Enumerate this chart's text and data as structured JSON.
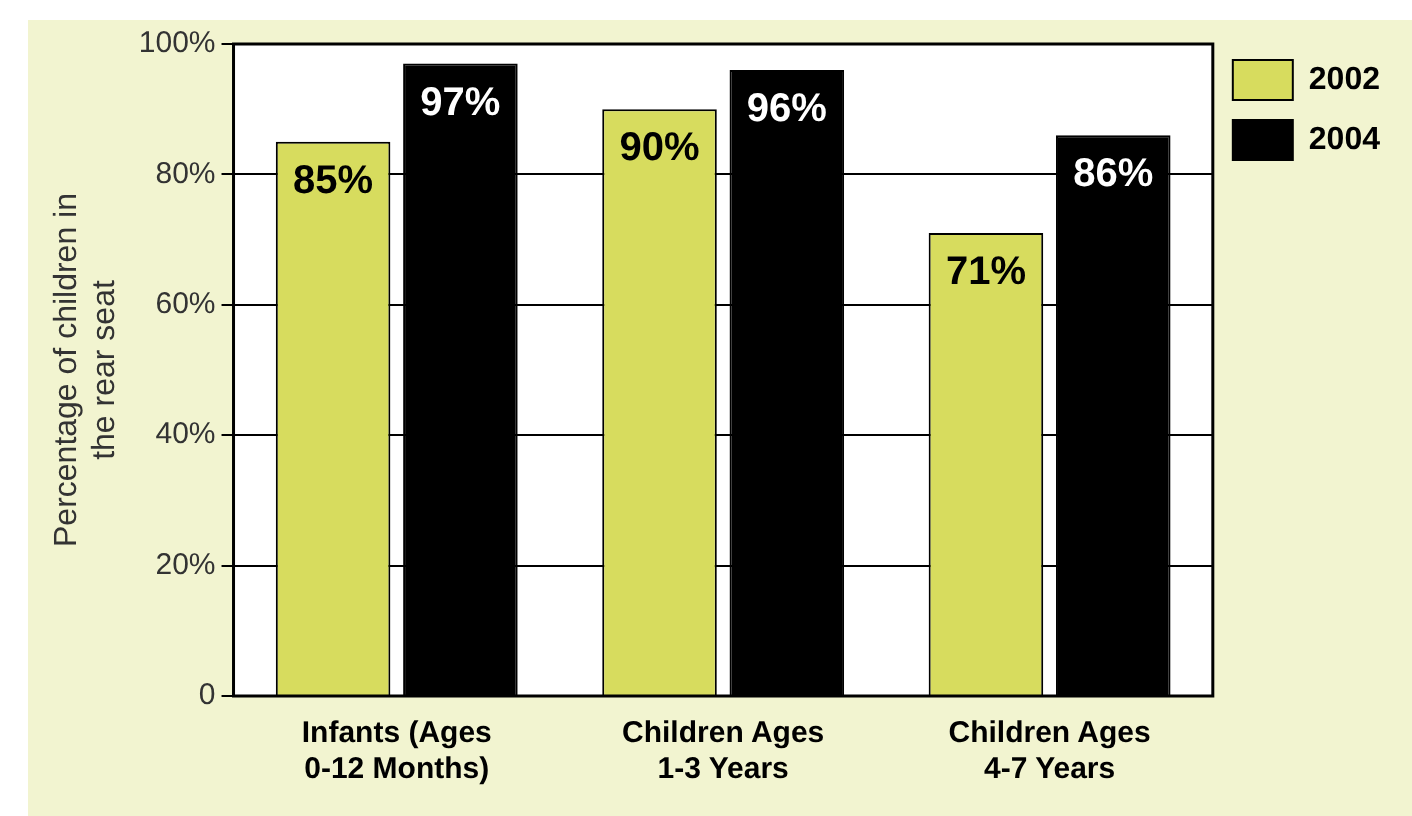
{
  "chart_data": {
    "type": "bar",
    "ylabel": "Percentage of children in the rear seat",
    "categories": [
      "Infants (Ages 0-12 Months)",
      "Children Ages 1-3 Years",
      "Children Ages 4-7 Years"
    ],
    "series": [
      {
        "name": "2002",
        "color": "#d7dc5e",
        "values": [
          85,
          90,
          71
        ],
        "value_labels": [
          "85%",
          "90%",
          "71%"
        ]
      },
      {
        "name": "2004",
        "color": "#000000",
        "values": [
          97,
          96,
          86
        ],
        "value_labels": [
          "97%",
          "96%",
          "86%"
        ]
      }
    ],
    "ylim": [
      0,
      100
    ],
    "yticks": [
      0,
      {
        "value": 20,
        "label": "20%"
      },
      {
        "value": 40,
        "label": "40%"
      },
      {
        "value": 60,
        "label": "60%"
      },
      {
        "value": 80,
        "label": "80%"
      },
      {
        "value": 100,
        "label": "100%"
      }
    ],
    "grid": "y",
    "legend": "right"
  }
}
